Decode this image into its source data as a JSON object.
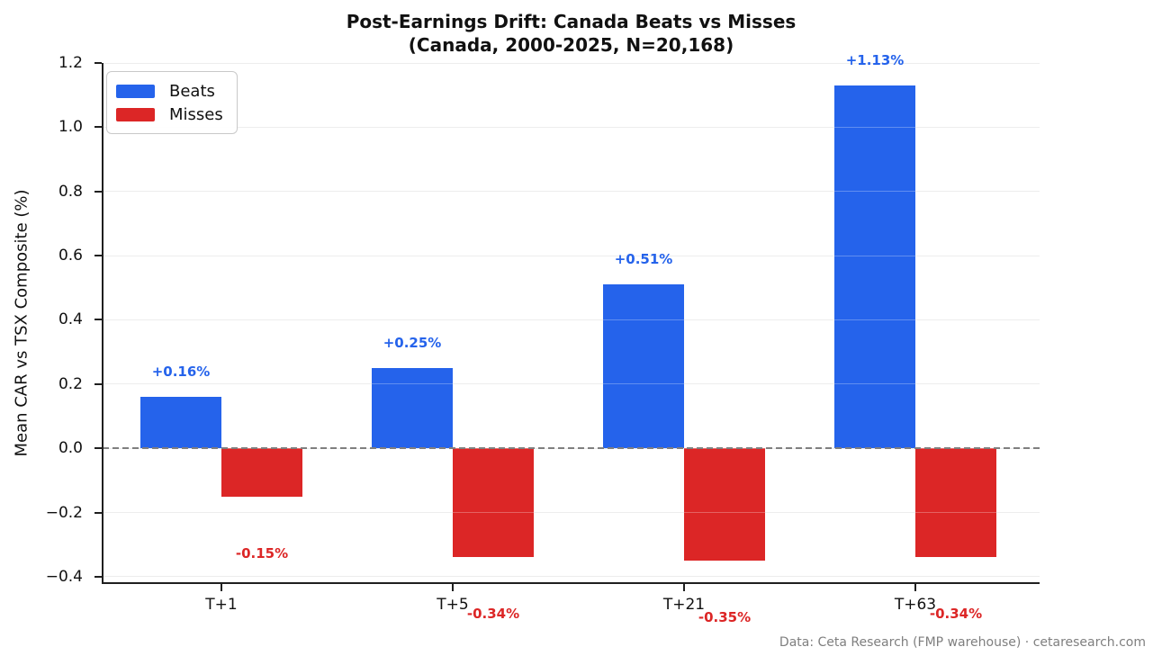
{
  "footer": {
    "credit": "Data: Ceta Research (FMP warehouse) · cetaresearch.com"
  },
  "chart_data": {
    "type": "bar",
    "title": "Post-Earnings Drift: Canada Beats vs Misses",
    "subtitle": "(Canada, 2000-2025, N=20,168)",
    "categories": [
      "T+1",
      "T+5",
      "T+21",
      "T+63"
    ],
    "series": [
      {
        "name": "Beats",
        "color": "#2563eb",
        "values": [
          0.16,
          0.25,
          0.51,
          1.13
        ],
        "value_labels": [
          "+0.16%",
          "+0.25%",
          "+0.51%",
          "+1.13%"
        ]
      },
      {
        "name": "Misses",
        "color": "#dc2626",
        "values": [
          -0.15,
          -0.34,
          -0.35,
          -0.34
        ],
        "value_labels": [
          "-0.15%",
          "-0.34%",
          "-0.35%",
          "-0.34%"
        ]
      }
    ],
    "xlabel": "",
    "ylabel": "Mean CAR vs TSX Composite (%)",
    "ylim": [
      -0.42,
      1.2
    ],
    "yticks": [
      -0.4,
      -0.2,
      0.0,
      0.2,
      0.4,
      0.6,
      0.8,
      1.0,
      1.2
    ],
    "ytick_labels": [
      "−0.4",
      "−0.2",
      "0.0",
      "0.2",
      "0.4",
      "0.6",
      "0.8",
      "1.0",
      "1.2"
    ],
    "grid": "horizontal",
    "legend_position": "upper-left",
    "zero_line": "dashed-gray",
    "colors": {
      "grid": "#e7e7e7",
      "zero_line": "#7f7f7f",
      "axis": "#1f1f1f",
      "footer_text": "#7f7f7f"
    }
  }
}
